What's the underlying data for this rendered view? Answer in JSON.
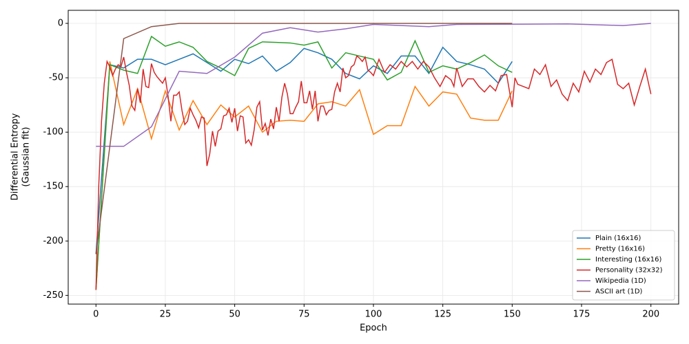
{
  "chart_data": {
    "type": "line",
    "xlabel": "Epoch",
    "ylabel": [
      "Differential Entropy",
      "(Gaussian fit)"
    ],
    "xlim": [
      -10,
      210
    ],
    "ylim": [
      -258,
      12
    ],
    "xticks": [
      0,
      25,
      50,
      75,
      100,
      125,
      150,
      175,
      200
    ],
    "yticks": [
      -250,
      -200,
      -150,
      -100,
      -50,
      0
    ],
    "grid": true,
    "legend": "lower right",
    "series": [
      {
        "name": "Plain (16x16)",
        "color": "#1f77b4",
        "x": [
          0,
          5,
          10,
          15,
          20,
          25,
          30,
          35,
          40,
          45,
          50,
          55,
          60,
          65,
          70,
          75,
          80,
          85,
          90,
          95,
          100,
          105,
          110,
          115,
          120,
          125,
          130,
          135,
          140,
          145,
          150
        ],
        "values": [
          -212,
          -38,
          -41,
          -33,
          -33,
          -38,
          -33,
          -28,
          -36,
          -44,
          -33,
          -37,
          -30,
          -44,
          -36,
          -23,
          -27,
          -33,
          -46,
          -51,
          -39,
          -46,
          -30,
          -30,
          -46,
          -22,
          -35,
          -38,
          -42,
          -55,
          -35
        ]
      },
      {
        "name": "Pretty (16x16)",
        "color": "#ff7f0e",
        "x": [
          0,
          5,
          10,
          15,
          20,
          25,
          30,
          35,
          40,
          45,
          50,
          55,
          60,
          65,
          70,
          75,
          80,
          85,
          90,
          95,
          100,
          105,
          110,
          115,
          120,
          125,
          130,
          135,
          140,
          145,
          150
        ],
        "values": [
          -245,
          -35,
          -93,
          -60,
          -106,
          -62,
          -98,
          -71,
          -93,
          -75,
          -86,
          -76,
          -100,
          -90,
          -89,
          -90,
          -74,
          -72,
          -76,
          -61,
          -102,
          -94,
          -94,
          -58,
          -76,
          -63,
          -65,
          -87,
          -89,
          -89,
          -62
        ]
      },
      {
        "name": "Interesting (16x16)",
        "color": "#2ca02c",
        "x": [
          0,
          5,
          10,
          15,
          20,
          25,
          30,
          35,
          40,
          45,
          50,
          55,
          60,
          65,
          70,
          75,
          80,
          85,
          90,
          95,
          100,
          105,
          110,
          115,
          120,
          125,
          130,
          135,
          140,
          145,
          150
        ],
        "values": [
          -245,
          -38,
          -43,
          -46,
          -12,
          -21,
          -17,
          -22,
          -35,
          -41,
          -48,
          -23,
          -17,
          -17.5,
          -18,
          -20,
          -17,
          -41,
          -27,
          -30,
          -33,
          -52,
          -45,
          -16,
          -45,
          -39,
          -42,
          -36,
          -29,
          -39,
          -45
        ]
      },
      {
        "name": "Personality (32x32)",
        "color": "#d62728",
        "x": [
          0,
          1,
          2,
          3,
          4,
          5,
          6,
          7,
          8,
          9,
          10,
          11,
          12,
          13,
          14,
          15,
          16,
          17,
          18,
          19,
          20,
          21,
          22,
          23,
          24,
          25,
          26,
          27,
          28,
          29,
          30,
          31,
          32,
          33,
          34,
          35,
          36,
          37,
          38,
          39,
          40,
          41,
          42,
          43,
          44,
          45,
          46,
          47,
          48,
          49,
          50,
          51,
          52,
          53,
          54,
          55,
          56,
          57,
          58,
          59,
          60,
          61,
          62,
          63,
          64,
          65,
          66,
          67,
          68,
          69,
          70,
          71,
          72,
          73,
          74,
          75,
          76,
          77,
          78,
          79,
          80,
          81,
          82,
          83,
          84,
          85,
          86,
          87,
          88,
          89,
          90,
          91,
          92,
          93,
          94,
          95,
          96,
          97,
          98,
          99,
          100,
          102,
          104,
          106,
          108,
          110,
          112,
          114,
          116,
          118,
          120,
          122,
          124,
          126,
          128,
          129,
          130,
          132,
          134,
          136,
          138,
          140,
          142,
          144,
          146,
          148,
          150,
          151,
          152,
          154,
          156,
          158,
          160,
          162,
          164,
          166,
          168,
          170,
          172,
          174,
          176,
          178,
          180,
          182,
          184,
          186,
          188,
          190,
          192,
          194,
          196,
          198,
          200
        ],
        "values": [
          -245,
          -150,
          -90,
          -55,
          -35,
          -40,
          -48,
          -42,
          -38,
          -40,
          -31,
          -45,
          -57,
          -76,
          -80,
          -60,
          -73,
          -42,
          -58,
          -59,
          -37,
          -45,
          -49,
          -52,
          -55,
          -50,
          -67,
          -90,
          -66,
          -66,
          -63,
          -80,
          -93,
          -90,
          -78,
          -84,
          -89,
          -96,
          -86,
          -87,
          -131,
          -120,
          -99,
          -113,
          -99,
          -97,
          -85,
          -84,
          -78,
          -91,
          -78,
          -99,
          -85,
          -86,
          -110,
          -107,
          -112,
          -98,
          -77,
          -72,
          -98,
          -92,
          -103,
          -88,
          -97,
          -77,
          -90,
          -68,
          -55,
          -65,
          -83,
          -83,
          -77,
          -72,
          -53,
          -73,
          -73,
          -62,
          -79,
          -62,
          -90,
          -76,
          -76,
          -84,
          -80,
          -79,
          -63,
          -55,
          -63,
          -41,
          -50,
          -48,
          -40,
          -38,
          -30,
          -32,
          -35,
          -31,
          -43,
          -45,
          -48,
          -33,
          -45,
          -38,
          -42,
          -35,
          -40,
          -35,
          -42,
          -35,
          -40,
          -50,
          -58,
          -48,
          -52,
          -58,
          -41,
          -58,
          -51,
          -51,
          -58,
          -63,
          -57,
          -62,
          -48,
          -47,
          -77,
          -50,
          -56,
          -58,
          -60,
          -42,
          -47,
          -38,
          -58,
          -52,
          -65,
          -71,
          -55,
          -63,
          -44,
          -54,
          -42,
          -47,
          -36,
          -33,
          -56,
          -60,
          -55,
          -75,
          -58,
          -42,
          -65
        ]
      },
      {
        "name": "Wikipedia (1D)",
        "color": "#9467bd",
        "x": [
          0,
          10,
          20,
          30,
          40,
          50,
          60,
          70,
          80,
          90,
          100,
          120,
          130,
          170,
          190,
          200
        ],
        "values": [
          -113,
          -113,
          -95,
          -44,
          -46,
          -31,
          -9,
          -4,
          -8,
          -5,
          -1,
          -3,
          -1,
          -0.5,
          -2,
          0
        ]
      },
      {
        "name": "ASCII art (1D)",
        "color": "#8c564b",
        "x": [
          0,
          10,
          20,
          30,
          150
        ],
        "values": [
          -212,
          -14,
          -3,
          0,
          0
        ]
      }
    ]
  }
}
